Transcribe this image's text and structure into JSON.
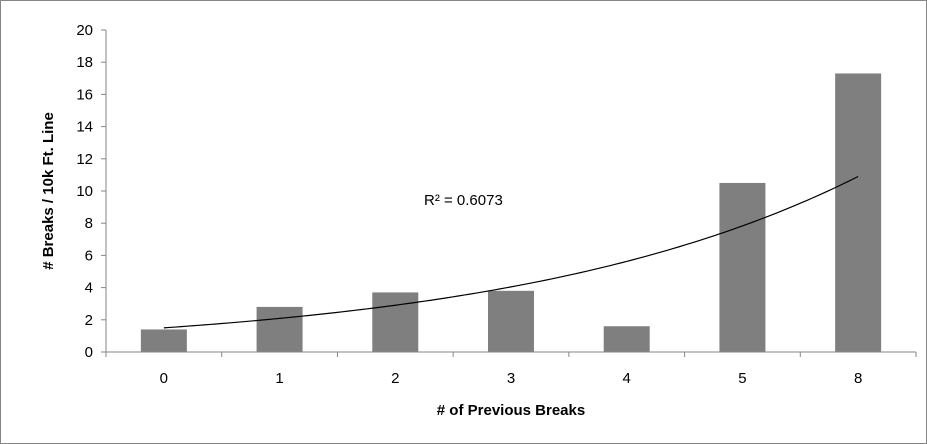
{
  "chart_data": {
    "type": "bar",
    "categories": [
      "0",
      "1",
      "2",
      "3",
      "4",
      "5",
      "8"
    ],
    "values": [
      1.4,
      2.8,
      3.7,
      3.8,
      1.6,
      10.5,
      17.3
    ],
    "xlabel": "# of Previous Breaks",
    "ylabel": "# Breaks / 10k Ft. Line",
    "ylim": [
      0,
      20
    ],
    "yticks": [
      "0",
      "2",
      "4",
      "6",
      "8",
      "10",
      "12",
      "14",
      "16",
      "18",
      "20"
    ],
    "grid": false,
    "legend": "none",
    "trendline": {
      "type": "exponential",
      "start_value": 1.5,
      "end_value": 10.9
    },
    "annotation": "R² = 0.6073",
    "colors": {
      "bar": "#7f7f7f",
      "trendline": "#000000",
      "axis": "#868686",
      "frame": "#868686"
    }
  }
}
